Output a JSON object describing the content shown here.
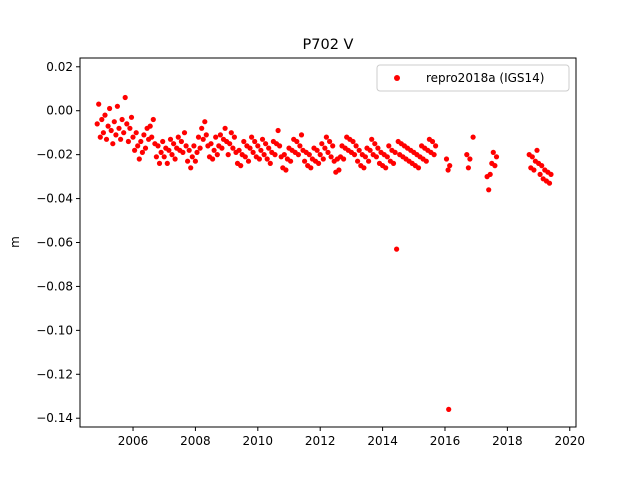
{
  "chart_data": {
    "type": "scatter",
    "title": "P702 V",
    "xlabel": "",
    "ylabel": "m",
    "xlim": [
      2004.3,
      2020.2
    ],
    "ylim": [
      -0.144,
      0.024
    ],
    "xticks": [
      2006,
      2008,
      2010,
      2012,
      2014,
      2016,
      2018,
      2020
    ],
    "xtick_labels": [
      "2006",
      "2008",
      "2010",
      "2012",
      "2014",
      "2016",
      "2018",
      "2020"
    ],
    "yticks": [
      0.02,
      0.0,
      -0.02,
      -0.04,
      -0.06,
      -0.08,
      -0.1,
      -0.12,
      -0.14
    ],
    "ytick_labels": [
      "0.02",
      "0.00",
      "−0.02",
      "−0.04",
      "−0.06",
      "−0.08",
      "−0.10",
      "−0.12",
      "−0.14"
    ],
    "grid": false,
    "legend_position": "top-right",
    "series": [
      {
        "name": "repro2018a (IGS14)",
        "color": "#ff0000",
        "marker": "circle",
        "points": [
          [
            2004.85,
            -0.006
          ],
          [
            2004.9,
            0.003
          ],
          [
            2004.95,
            -0.012
          ],
          [
            2005.0,
            -0.004
          ],
          [
            2005.05,
            -0.01
          ],
          [
            2005.1,
            -0.002
          ],
          [
            2005.15,
            -0.013
          ],
          [
            2005.2,
            -0.007
          ],
          [
            2005.25,
            0.001
          ],
          [
            2005.3,
            -0.009
          ],
          [
            2005.35,
            -0.015
          ],
          [
            2005.4,
            -0.005
          ],
          [
            2005.45,
            -0.011
          ],
          [
            2005.5,
            0.002
          ],
          [
            2005.55,
            -0.008
          ],
          [
            2005.6,
            -0.013
          ],
          [
            2005.65,
            -0.004
          ],
          [
            2005.7,
            -0.01
          ],
          [
            2005.75,
            0.006
          ],
          [
            2005.8,
            -0.006
          ],
          [
            2005.85,
            -0.014
          ],
          [
            2005.9,
            -0.008
          ],
          [
            2005.95,
            -0.003
          ],
          [
            2006.0,
            -0.012
          ],
          [
            2006.05,
            -0.018
          ],
          [
            2006.1,
            -0.01
          ],
          [
            2006.15,
            -0.016
          ],
          [
            2006.2,
            -0.022
          ],
          [
            2006.25,
            -0.014
          ],
          [
            2006.3,
            -0.019
          ],
          [
            2006.35,
            -0.011
          ],
          [
            2006.4,
            -0.017
          ],
          [
            2006.45,
            -0.008
          ],
          [
            2006.5,
            -0.013
          ],
          [
            2006.55,
            -0.007
          ],
          [
            2006.6,
            -0.012
          ],
          [
            2006.65,
            -0.004
          ],
          [
            2006.7,
            -0.015
          ],
          [
            2006.75,
            -0.021
          ],
          [
            2006.8,
            -0.016
          ],
          [
            2006.85,
            -0.024
          ],
          [
            2006.9,
            -0.019
          ],
          [
            2006.95,
            -0.014
          ],
          [
            2007.0,
            -0.021
          ],
          [
            2007.05,
            -0.017
          ],
          [
            2007.1,
            -0.024
          ],
          [
            2007.15,
            -0.018
          ],
          [
            2007.2,
            -0.013
          ],
          [
            2007.25,
            -0.02
          ],
          [
            2007.3,
            -0.015
          ],
          [
            2007.35,
            -0.022
          ],
          [
            2007.4,
            -0.017
          ],
          [
            2007.45,
            -0.012
          ],
          [
            2007.5,
            -0.018
          ],
          [
            2007.55,
            -0.014
          ],
          [
            2007.6,
            -0.019
          ],
          [
            2007.65,
            -0.01
          ],
          [
            2007.7,
            -0.016
          ],
          [
            2007.75,
            -0.023
          ],
          [
            2007.8,
            -0.018
          ],
          [
            2007.85,
            -0.026
          ],
          [
            2007.9,
            -0.021
          ],
          [
            2007.95,
            -0.016
          ],
          [
            2008.0,
            -0.023
          ],
          [
            2008.05,
            -0.019
          ],
          [
            2008.1,
            -0.012
          ],
          [
            2008.15,
            -0.017
          ],
          [
            2008.2,
            -0.008
          ],
          [
            2008.25,
            -0.013
          ],
          [
            2008.3,
            -0.005
          ],
          [
            2008.35,
            -0.011
          ],
          [
            2008.4,
            -0.016
          ],
          [
            2008.45,
            -0.021
          ],
          [
            2008.5,
            -0.015
          ],
          [
            2008.55,
            -0.022
          ],
          [
            2008.6,
            -0.018
          ],
          [
            2008.65,
            -0.012
          ],
          [
            2008.7,
            -0.02
          ],
          [
            2008.75,
            -0.016
          ],
          [
            2008.8,
            -0.011
          ],
          [
            2008.85,
            -0.017
          ],
          [
            2008.9,
            -0.013
          ],
          [
            2008.95,
            -0.008
          ],
          [
            2009.0,
            -0.014
          ],
          [
            2009.05,
            -0.02
          ],
          [
            2009.1,
            -0.015
          ],
          [
            2009.15,
            -0.01
          ],
          [
            2009.2,
            -0.017
          ],
          [
            2009.25,
            -0.012
          ],
          [
            2009.3,
            -0.019
          ],
          [
            2009.35,
            -0.024
          ],
          [
            2009.4,
            -0.018
          ],
          [
            2009.45,
            -0.025
          ],
          [
            2009.5,
            -0.02
          ],
          [
            2009.55,
            -0.014
          ],
          [
            2009.6,
            -0.021
          ],
          [
            2009.65,
            -0.016
          ],
          [
            2009.7,
            -0.023
          ],
          [
            2009.75,
            -0.017
          ],
          [
            2009.8,
            -0.012
          ],
          [
            2009.85,
            -0.019
          ],
          [
            2009.9,
            -0.014
          ],
          [
            2009.95,
            -0.021
          ],
          [
            2010.0,
            -0.016
          ],
          [
            2010.05,
            -0.022
          ],
          [
            2010.1,
            -0.018
          ],
          [
            2010.15,
            -0.013
          ],
          [
            2010.2,
            -0.02
          ],
          [
            2010.25,
            -0.015
          ],
          [
            2010.3,
            -0.022
          ],
          [
            2010.35,
            -0.017
          ],
          [
            2010.4,
            -0.024
          ],
          [
            2010.45,
            -0.019
          ],
          [
            2010.5,
            -0.014
          ],
          [
            2010.55,
            -0.02
          ],
          [
            2010.6,
            -0.015
          ],
          [
            2010.65,
            -0.009
          ],
          [
            2010.7,
            -0.016
          ],
          [
            2010.75,
            -0.021
          ],
          [
            2010.8,
            -0.026
          ],
          [
            2010.85,
            -0.02
          ],
          [
            2010.9,
            -0.027
          ],
          [
            2010.95,
            -0.022
          ],
          [
            2011.0,
            -0.017
          ],
          [
            2011.05,
            -0.023
          ],
          [
            2011.1,
            -0.018
          ],
          [
            2011.15,
            -0.013
          ],
          [
            2011.2,
            -0.019
          ],
          [
            2011.25,
            -0.014
          ],
          [
            2011.3,
            -0.02
          ],
          [
            2011.35,
            -0.016
          ],
          [
            2011.4,
            -0.011
          ],
          [
            2011.45,
            -0.018
          ],
          [
            2011.5,
            -0.023
          ],
          [
            2011.55,
            -0.019
          ],
          [
            2011.6,
            -0.025
          ],
          [
            2011.65,
            -0.02
          ],
          [
            2011.7,
            -0.026
          ],
          [
            2011.75,
            -0.022
          ],
          [
            2011.8,
            -0.017
          ],
          [
            2011.85,
            -0.023
          ],
          [
            2011.9,
            -0.018
          ],
          [
            2011.95,
            -0.024
          ],
          [
            2012.0,
            -0.02
          ],
          [
            2012.05,
            -0.015
          ],
          [
            2012.1,
            -0.022
          ],
          [
            2012.15,
            -0.017
          ],
          [
            2012.2,
            -0.012
          ],
          [
            2012.25,
            -0.019
          ],
          [
            2012.3,
            -0.014
          ],
          [
            2012.35,
            -0.021
          ],
          [
            2012.4,
            -0.016
          ],
          [
            2012.45,
            -0.023
          ],
          [
            2012.5,
            -0.028
          ],
          [
            2012.55,
            -0.022
          ],
          [
            2012.6,
            -0.027
          ],
          [
            2012.65,
            -0.021
          ],
          [
            2012.7,
            -0.016
          ],
          [
            2012.75,
            -0.022
          ],
          [
            2012.8,
            -0.017
          ],
          [
            2012.85,
            -0.012
          ],
          [
            2012.9,
            -0.018
          ],
          [
            2012.95,
            -0.013
          ],
          [
            2013.0,
            -0.019
          ],
          [
            2013.05,
            -0.014
          ],
          [
            2013.1,
            -0.02
          ],
          [
            2013.15,
            -0.016
          ],
          [
            2013.2,
            -0.023
          ],
          [
            2013.25,
            -0.018
          ],
          [
            2013.3,
            -0.025
          ],
          [
            2013.35,
            -0.02
          ],
          [
            2013.4,
            -0.026
          ],
          [
            2013.45,
            -0.021
          ],
          [
            2013.5,
            -0.017
          ],
          [
            2013.55,
            -0.023
          ],
          [
            2013.6,
            -0.018
          ],
          [
            2013.65,
            -0.013
          ],
          [
            2013.7,
            -0.02
          ],
          [
            2013.75,
            -0.015
          ],
          [
            2013.8,
            -0.021
          ],
          [
            2013.85,
            -0.017
          ],
          [
            2013.9,
            -0.024
          ],
          [
            2013.95,
            -0.019
          ],
          [
            2014.0,
            -0.025
          ],
          [
            2014.05,
            -0.02
          ],
          [
            2014.1,
            -0.026
          ],
          [
            2014.15,
            -0.021
          ],
          [
            2014.2,
            -0.016
          ],
          [
            2014.25,
            -0.023
          ],
          [
            2014.3,
            -0.018
          ],
          [
            2014.35,
            -0.024
          ],
          [
            2014.4,
            -0.019
          ],
          [
            2014.45,
            -0.063
          ],
          [
            2014.5,
            -0.014
          ],
          [
            2014.55,
            -0.02
          ],
          [
            2014.6,
            -0.015
          ],
          [
            2014.65,
            -0.021
          ],
          [
            2014.7,
            -0.016
          ],
          [
            2014.75,
            -0.022
          ],
          [
            2014.8,
            -0.017
          ],
          [
            2014.85,
            -0.023
          ],
          [
            2014.9,
            -0.018
          ],
          [
            2014.95,
            -0.024
          ],
          [
            2015.0,
            -0.019
          ],
          [
            2015.05,
            -0.025
          ],
          [
            2015.1,
            -0.02
          ],
          [
            2015.15,
            -0.026
          ],
          [
            2015.2,
            -0.021
          ],
          [
            2015.25,
            -0.016
          ],
          [
            2015.3,
            -0.022
          ],
          [
            2015.35,
            -0.017
          ],
          [
            2015.4,
            -0.023
          ],
          [
            2015.45,
            -0.018
          ],
          [
            2015.5,
            -0.013
          ],
          [
            2015.55,
            -0.019
          ],
          [
            2015.6,
            -0.014
          ],
          [
            2015.65,
            -0.02
          ],
          [
            2015.7,
            -0.016
          ],
          [
            2016.05,
            -0.022
          ],
          [
            2016.1,
            -0.027
          ],
          [
            2016.12,
            -0.136
          ],
          [
            2016.15,
            -0.025
          ],
          [
            2016.7,
            -0.02
          ],
          [
            2016.75,
            -0.026
          ],
          [
            2016.8,
            -0.022
          ],
          [
            2016.9,
            -0.012
          ],
          [
            2017.35,
            -0.03
          ],
          [
            2017.4,
            -0.036
          ],
          [
            2017.45,
            -0.029
          ],
          [
            2017.5,
            -0.024
          ],
          [
            2017.55,
            -0.019
          ],
          [
            2017.6,
            -0.025
          ],
          [
            2017.65,
            -0.021
          ],
          [
            2018.7,
            -0.02
          ],
          [
            2018.75,
            -0.026
          ],
          [
            2018.8,
            -0.021
          ],
          [
            2018.85,
            -0.027
          ],
          [
            2018.9,
            -0.023
          ],
          [
            2018.95,
            -0.018
          ],
          [
            2019.0,
            -0.024
          ],
          [
            2019.05,
            -0.029
          ],
          [
            2019.1,
            -0.025
          ],
          [
            2019.15,
            -0.031
          ],
          [
            2019.2,
            -0.027
          ],
          [
            2019.25,
            -0.032
          ],
          [
            2019.3,
            -0.028
          ],
          [
            2019.35,
            -0.033
          ],
          [
            2019.4,
            -0.029
          ]
        ]
      }
    ]
  }
}
